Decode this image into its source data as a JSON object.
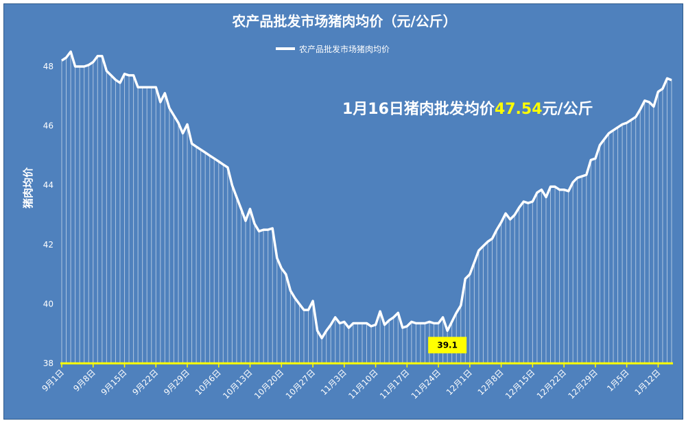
{
  "chart_data": {
    "type": "line",
    "title": "农产品批发市场猪肉均价（元/公斤）",
    "ylabel": "猪肉均价",
    "ylim": [
      38,
      49.5
    ],
    "yticks": [
      38,
      40,
      42,
      44,
      46,
      48
    ],
    "legend": {
      "position": "top-center",
      "entries": [
        "农产品批发市场猪肉均价"
      ]
    },
    "grid": false,
    "colors": {
      "background": "#4f81bd",
      "line": "#ffffff",
      "axis": "#ffff00",
      "label_box": "#ffff00"
    },
    "x_labels": [
      "9月1日",
      "9月8日",
      "9月15日",
      "9月22日",
      "9月29日",
      "10月6日",
      "10月13日",
      "10月20日",
      "10月27日",
      "11月3日",
      "11月10日",
      "11月17日",
      "11月24日",
      "12月1日",
      "12月8日",
      "12月15日",
      "12月22日",
      "12月29日",
      "1月5日",
      "1月12日"
    ],
    "series": [
      {
        "name": "农产品批发市场猪肉均价",
        "start_date": "9月1日",
        "values": [
          48.2,
          48.3,
          48.5,
          48.0,
          48.0,
          48.0,
          48.05,
          48.15,
          48.35,
          48.35,
          47.85,
          47.7,
          47.55,
          47.45,
          47.75,
          47.7,
          47.7,
          47.3,
          47.3,
          47.3,
          47.3,
          47.3,
          46.8,
          47.1,
          46.6,
          46.35,
          46.1,
          45.75,
          46.05,
          45.4,
          45.3,
          45.2,
          45.1,
          45.0,
          44.9,
          44.8,
          44.7,
          44.6,
          44.0,
          43.6,
          43.2,
          42.8,
          43.2,
          42.7,
          42.45,
          42.5,
          42.5,
          42.55,
          41.55,
          41.2,
          41.0,
          40.45,
          40.2,
          40.0,
          39.8,
          39.8,
          40.1,
          39.1,
          38.85,
          39.1,
          39.3,
          39.55,
          39.35,
          39.4,
          39.2,
          39.35,
          39.35,
          39.35,
          39.35,
          39.25,
          39.3,
          39.75,
          39.3,
          39.45,
          39.55,
          39.7,
          39.2,
          39.25,
          39.4,
          39.35,
          39.35,
          39.35,
          39.4,
          39.35,
          39.35,
          39.55,
          39.1,
          39.4,
          39.7,
          39.95,
          40.85,
          41.0,
          41.4,
          41.8,
          41.95,
          42.1,
          42.2,
          42.5,
          42.75,
          43.05,
          42.85,
          43.0,
          43.25,
          43.45,
          43.4,
          43.45,
          43.75,
          43.85,
          43.6,
          43.95,
          43.95,
          43.85,
          43.85,
          43.8,
          44.1,
          44.25,
          44.3,
          44.35,
          44.85,
          44.9,
          45.35,
          45.55,
          45.75,
          45.85,
          45.95,
          46.05,
          46.1,
          46.2,
          46.3,
          46.55,
          46.85,
          46.8,
          46.65,
          47.15,
          47.25,
          47.6,
          47.54
        ]
      }
    ],
    "annotations": {
      "headline_prefix": "1月16日猪肉批发均价",
      "headline_value": "47.54",
      "headline_suffix": "元/公斤",
      "min_label": "39.1"
    }
  }
}
